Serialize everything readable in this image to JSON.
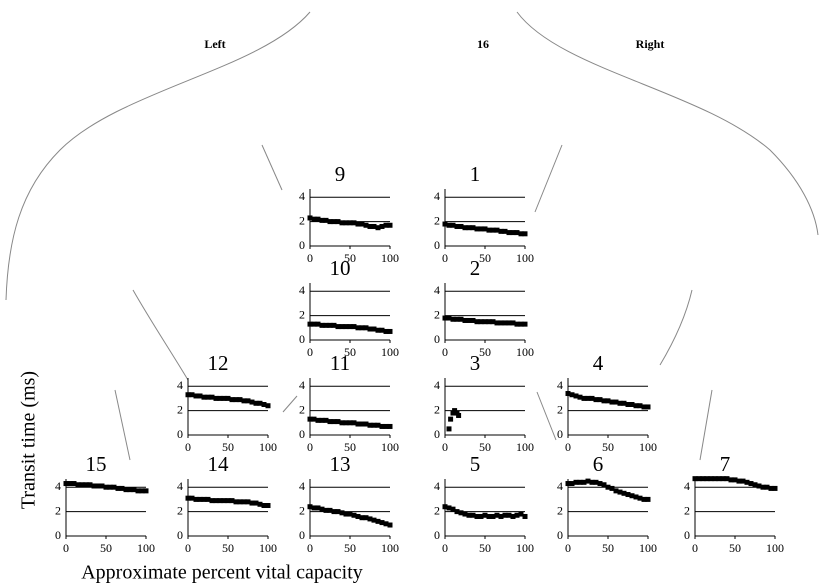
{
  "labels": {
    "left": "Left",
    "center": "16",
    "right": "Right"
  },
  "ylabel": "Transit time (ms)",
  "xlabel": "Approximate percent vital capacity",
  "chart_data": [
    {
      "type": "scatter",
      "title": "9",
      "x": [
        0,
        5,
        10,
        15,
        20,
        25,
        30,
        35,
        40,
        45,
        50,
        55,
        60,
        65,
        70,
        75,
        80,
        85,
        90,
        95,
        100
      ],
      "values": [
        2.3,
        2.2,
        2.2,
        2.1,
        2.1,
        2.0,
        2.0,
        2.0,
        1.9,
        1.9,
        1.9,
        1.9,
        1.8,
        1.8,
        1.7,
        1.6,
        1.6,
        1.5,
        1.6,
        1.7,
        1.7
      ],
      "color": "#000000",
      "xlim": [
        0,
        100
      ],
      "ylim": [
        0,
        5
      ],
      "xticks": [
        0,
        50,
        100
      ],
      "yticks": [
        0,
        2,
        4
      ],
      "grid": true
    },
    {
      "type": "scatter",
      "title": "1",
      "x": [
        0,
        5,
        10,
        15,
        20,
        25,
        30,
        35,
        40,
        45,
        50,
        55,
        60,
        65,
        70,
        75,
        80,
        85,
        90,
        95,
        100
      ],
      "values": [
        1.8,
        1.7,
        1.7,
        1.6,
        1.6,
        1.5,
        1.5,
        1.5,
        1.4,
        1.4,
        1.4,
        1.3,
        1.3,
        1.3,
        1.2,
        1.2,
        1.1,
        1.1,
        1.1,
        1.0,
        1.0
      ],
      "color": "#000000",
      "xlim": [
        0,
        100
      ],
      "ylim": [
        0,
        5
      ],
      "xticks": [
        0,
        50,
        100
      ],
      "yticks": [
        0,
        2,
        4
      ],
      "grid": true
    },
    {
      "type": "scatter",
      "title": "10",
      "x": [
        0,
        5,
        10,
        15,
        20,
        25,
        30,
        35,
        40,
        45,
        50,
        55,
        60,
        65,
        70,
        75,
        80,
        85,
        90,
        95,
        100
      ],
      "values": [
        1.3,
        1.3,
        1.3,
        1.2,
        1.2,
        1.2,
        1.2,
        1.1,
        1.1,
        1.1,
        1.1,
        1.1,
        1.0,
        1.0,
        1.0,
        0.9,
        0.9,
        0.8,
        0.8,
        0.7,
        0.7
      ],
      "color": "#000000",
      "xlim": [
        0,
        100
      ],
      "ylim": [
        0,
        5
      ],
      "xticks": [
        0,
        50,
        100
      ],
      "yticks": [
        0,
        2,
        4
      ],
      "grid": true
    },
    {
      "type": "scatter",
      "title": "2",
      "x": [
        0,
        5,
        10,
        15,
        20,
        25,
        30,
        35,
        40,
        45,
        50,
        55,
        60,
        65,
        70,
        75,
        80,
        85,
        90,
        95,
        100
      ],
      "values": [
        1.8,
        1.8,
        1.7,
        1.7,
        1.7,
        1.6,
        1.6,
        1.6,
        1.5,
        1.5,
        1.5,
        1.5,
        1.5,
        1.4,
        1.4,
        1.4,
        1.4,
        1.4,
        1.3,
        1.3,
        1.3
      ],
      "color": "#000000",
      "xlim": [
        0,
        100
      ],
      "ylim": [
        0,
        5
      ],
      "xticks": [
        0,
        50,
        100
      ],
      "yticks": [
        0,
        2,
        4
      ],
      "grid": true
    },
    {
      "type": "scatter",
      "title": "12",
      "x": [
        0,
        5,
        10,
        15,
        20,
        25,
        30,
        35,
        40,
        45,
        50,
        55,
        60,
        65,
        70,
        75,
        80,
        85,
        90,
        95,
        100
      ],
      "values": [
        3.3,
        3.3,
        3.2,
        3.2,
        3.1,
        3.1,
        3.1,
        3.0,
        3.0,
        3.0,
        3.0,
        2.9,
        2.9,
        2.9,
        2.8,
        2.8,
        2.7,
        2.6,
        2.6,
        2.5,
        2.4
      ],
      "color": "#000000",
      "xlim": [
        0,
        100
      ],
      "ylim": [
        0,
        5
      ],
      "xticks": [
        0,
        50,
        100
      ],
      "yticks": [
        0,
        2,
        4
      ],
      "grid": true
    },
    {
      "type": "scatter",
      "title": "11",
      "x": [
        0,
        5,
        10,
        15,
        20,
        25,
        30,
        35,
        40,
        45,
        50,
        55,
        60,
        65,
        70,
        75,
        80,
        85,
        90,
        95,
        100
      ],
      "values": [
        1.3,
        1.3,
        1.2,
        1.2,
        1.2,
        1.1,
        1.1,
        1.1,
        1.0,
        1.0,
        1.0,
        1.0,
        0.9,
        0.9,
        0.9,
        0.8,
        0.8,
        0.8,
        0.7,
        0.7,
        0.7
      ],
      "color": "#000000",
      "xlim": [
        0,
        100
      ],
      "ylim": [
        0,
        5
      ],
      "xticks": [
        0,
        50,
        100
      ],
      "yticks": [
        0,
        2,
        4
      ],
      "grid": true
    },
    {
      "type": "scatter",
      "title": "3",
      "x": [
        5,
        7,
        10,
        12,
        15,
        17
      ],
      "values": [
        0.5,
        1.3,
        1.8,
        2.0,
        1.8,
        1.6
      ],
      "color": "#000000",
      "xlim": [
        0,
        100
      ],
      "ylim": [
        0,
        5
      ],
      "xticks": [
        0,
        50,
        100
      ],
      "yticks": [
        0,
        2,
        4
      ],
      "grid": true
    },
    {
      "type": "scatter",
      "title": "4",
      "x": [
        0,
        5,
        10,
        15,
        20,
        25,
        30,
        35,
        40,
        45,
        50,
        55,
        60,
        65,
        70,
        75,
        80,
        85,
        90,
        95,
        100
      ],
      "values": [
        3.4,
        3.3,
        3.2,
        3.1,
        3.0,
        3.0,
        3.0,
        2.9,
        2.9,
        2.8,
        2.8,
        2.7,
        2.7,
        2.6,
        2.6,
        2.5,
        2.5,
        2.4,
        2.4,
        2.3,
        2.3
      ],
      "color": "#000000",
      "xlim": [
        0,
        100
      ],
      "ylim": [
        0,
        5
      ],
      "xticks": [
        0,
        50,
        100
      ],
      "yticks": [
        0,
        2,
        4
      ],
      "grid": true
    },
    {
      "type": "scatter",
      "title": "15",
      "x": [
        0,
        5,
        10,
        15,
        20,
        25,
        30,
        35,
        40,
        45,
        50,
        55,
        60,
        65,
        70,
        75,
        80,
        85,
        90,
        95,
        100
      ],
      "values": [
        4.3,
        4.3,
        4.3,
        4.2,
        4.2,
        4.2,
        4.2,
        4.1,
        4.1,
        4.1,
        4.0,
        4.0,
        4.0,
        3.9,
        3.9,
        3.8,
        3.8,
        3.8,
        3.7,
        3.7,
        3.7
      ],
      "color": "#000000",
      "xlim": [
        0,
        100
      ],
      "ylim": [
        0,
        5
      ],
      "xticks": [
        0,
        50,
        100
      ],
      "yticks": [
        0,
        2,
        4
      ],
      "grid": true
    },
    {
      "type": "scatter",
      "title": "14",
      "x": [
        0,
        5,
        10,
        15,
        20,
        25,
        30,
        35,
        40,
        45,
        50,
        55,
        60,
        65,
        70,
        75,
        80,
        85,
        90,
        95,
        100
      ],
      "values": [
        3.1,
        3.1,
        3.0,
        3.0,
        3.0,
        3.0,
        2.9,
        2.9,
        2.9,
        2.9,
        2.9,
        2.9,
        2.8,
        2.8,
        2.8,
        2.8,
        2.7,
        2.7,
        2.6,
        2.5,
        2.5
      ],
      "color": "#000000",
      "xlim": [
        0,
        100
      ],
      "ylim": [
        0,
        5
      ],
      "xticks": [
        0,
        50,
        100
      ],
      "yticks": [
        0,
        2,
        4
      ],
      "grid": true
    },
    {
      "type": "scatter",
      "title": "13",
      "x": [
        0,
        5,
        10,
        15,
        20,
        25,
        30,
        35,
        40,
        45,
        50,
        55,
        60,
        65,
        70,
        75,
        80,
        85,
        90,
        95,
        100
      ],
      "values": [
        2.4,
        2.3,
        2.3,
        2.2,
        2.1,
        2.1,
        2.0,
        2.0,
        1.9,
        1.8,
        1.8,
        1.7,
        1.6,
        1.5,
        1.5,
        1.4,
        1.3,
        1.2,
        1.1,
        1.0,
        0.9
      ],
      "color": "#000000",
      "xlim": [
        0,
        100
      ],
      "ylim": [
        0,
        5
      ],
      "xticks": [
        0,
        50,
        100
      ],
      "yticks": [
        0,
        2,
        4
      ],
      "grid": true
    },
    {
      "type": "scatter",
      "title": "5",
      "x": [
        0,
        5,
        10,
        15,
        20,
        25,
        30,
        35,
        40,
        45,
        50,
        55,
        60,
        65,
        70,
        75,
        80,
        85,
        90,
        95,
        100
      ],
      "values": [
        2.4,
        2.3,
        2.2,
        2.0,
        1.9,
        1.8,
        1.7,
        1.7,
        1.6,
        1.6,
        1.7,
        1.6,
        1.6,
        1.7,
        1.6,
        1.7,
        1.7,
        1.6,
        1.7,
        1.8,
        1.6
      ],
      "color": "#000000",
      "xlim": [
        0,
        100
      ],
      "ylim": [
        0,
        5
      ],
      "xticks": [
        0,
        50,
        100
      ],
      "yticks": [
        0,
        2,
        4
      ],
      "grid": true
    },
    {
      "type": "scatter",
      "title": "6",
      "x": [
        0,
        5,
        10,
        15,
        20,
        25,
        30,
        35,
        40,
        45,
        50,
        55,
        60,
        65,
        70,
        75,
        80,
        85,
        90,
        95,
        100
      ],
      "values": [
        4.3,
        4.3,
        4.4,
        4.4,
        4.4,
        4.5,
        4.4,
        4.4,
        4.3,
        4.2,
        4.0,
        3.9,
        3.7,
        3.6,
        3.5,
        3.4,
        3.3,
        3.2,
        3.1,
        3.0,
        3.0
      ],
      "color": "#000000",
      "xlim": [
        0,
        100
      ],
      "ylim": [
        0,
        5
      ],
      "xticks": [
        0,
        50,
        100
      ],
      "yticks": [
        0,
        2,
        4
      ],
      "grid": true
    },
    {
      "type": "scatter",
      "title": "7",
      "x": [
        0,
        5,
        10,
        15,
        20,
        25,
        30,
        35,
        40,
        45,
        50,
        55,
        60,
        65,
        70,
        75,
        80,
        85,
        90,
        95,
        100
      ],
      "values": [
        4.7,
        4.7,
        4.7,
        4.7,
        4.7,
        4.7,
        4.7,
        4.7,
        4.7,
        4.6,
        4.6,
        4.5,
        4.5,
        4.4,
        4.3,
        4.2,
        4.1,
        4.0,
        4.0,
        3.9,
        3.9
      ],
      "color": "#000000",
      "xlim": [
        0,
        100
      ],
      "ylim": [
        0,
        5
      ],
      "xticks": [
        0,
        50,
        100
      ],
      "yticks": [
        0,
        2,
        4
      ],
      "grid": true
    }
  ]
}
